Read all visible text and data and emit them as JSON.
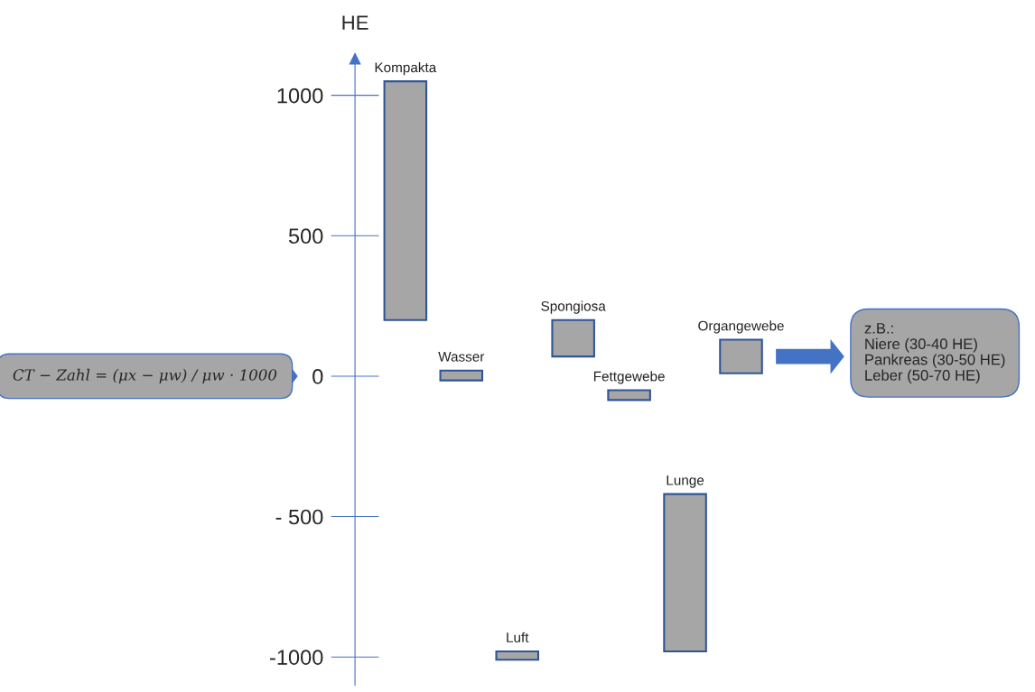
{
  "chart_data": {
    "type": "bar",
    "categories": [
      "Kompakta",
      "Wasser",
      "Luft",
      "Spongiosa",
      "Fettgewebe",
      "Lunge",
      "Organgewebe"
    ],
    "base": [
      200,
      -15,
      -1010,
      70,
      -85,
      -980,
      10
    ],
    "values": [
      850,
      35,
      30,
      130,
      35,
      560,
      120
    ],
    "color": "#a6a6a6",
    "ylabel": "HE",
    "ylim": [
      -1100,
      1130
    ],
    "yticks": [
      1000,
      500,
      0,
      {
        "value": -500,
        "label": "- 500"
      },
      -1000
    ],
    "grid": false,
    "annotations": [
      "CT − Zahl = (μx − μw) / μw · 1000",
      "z.B.:\nNiere (30-40 HE)\nPankreas (30-50 HE)\nLeber (50-70 HE)"
    ]
  }
}
